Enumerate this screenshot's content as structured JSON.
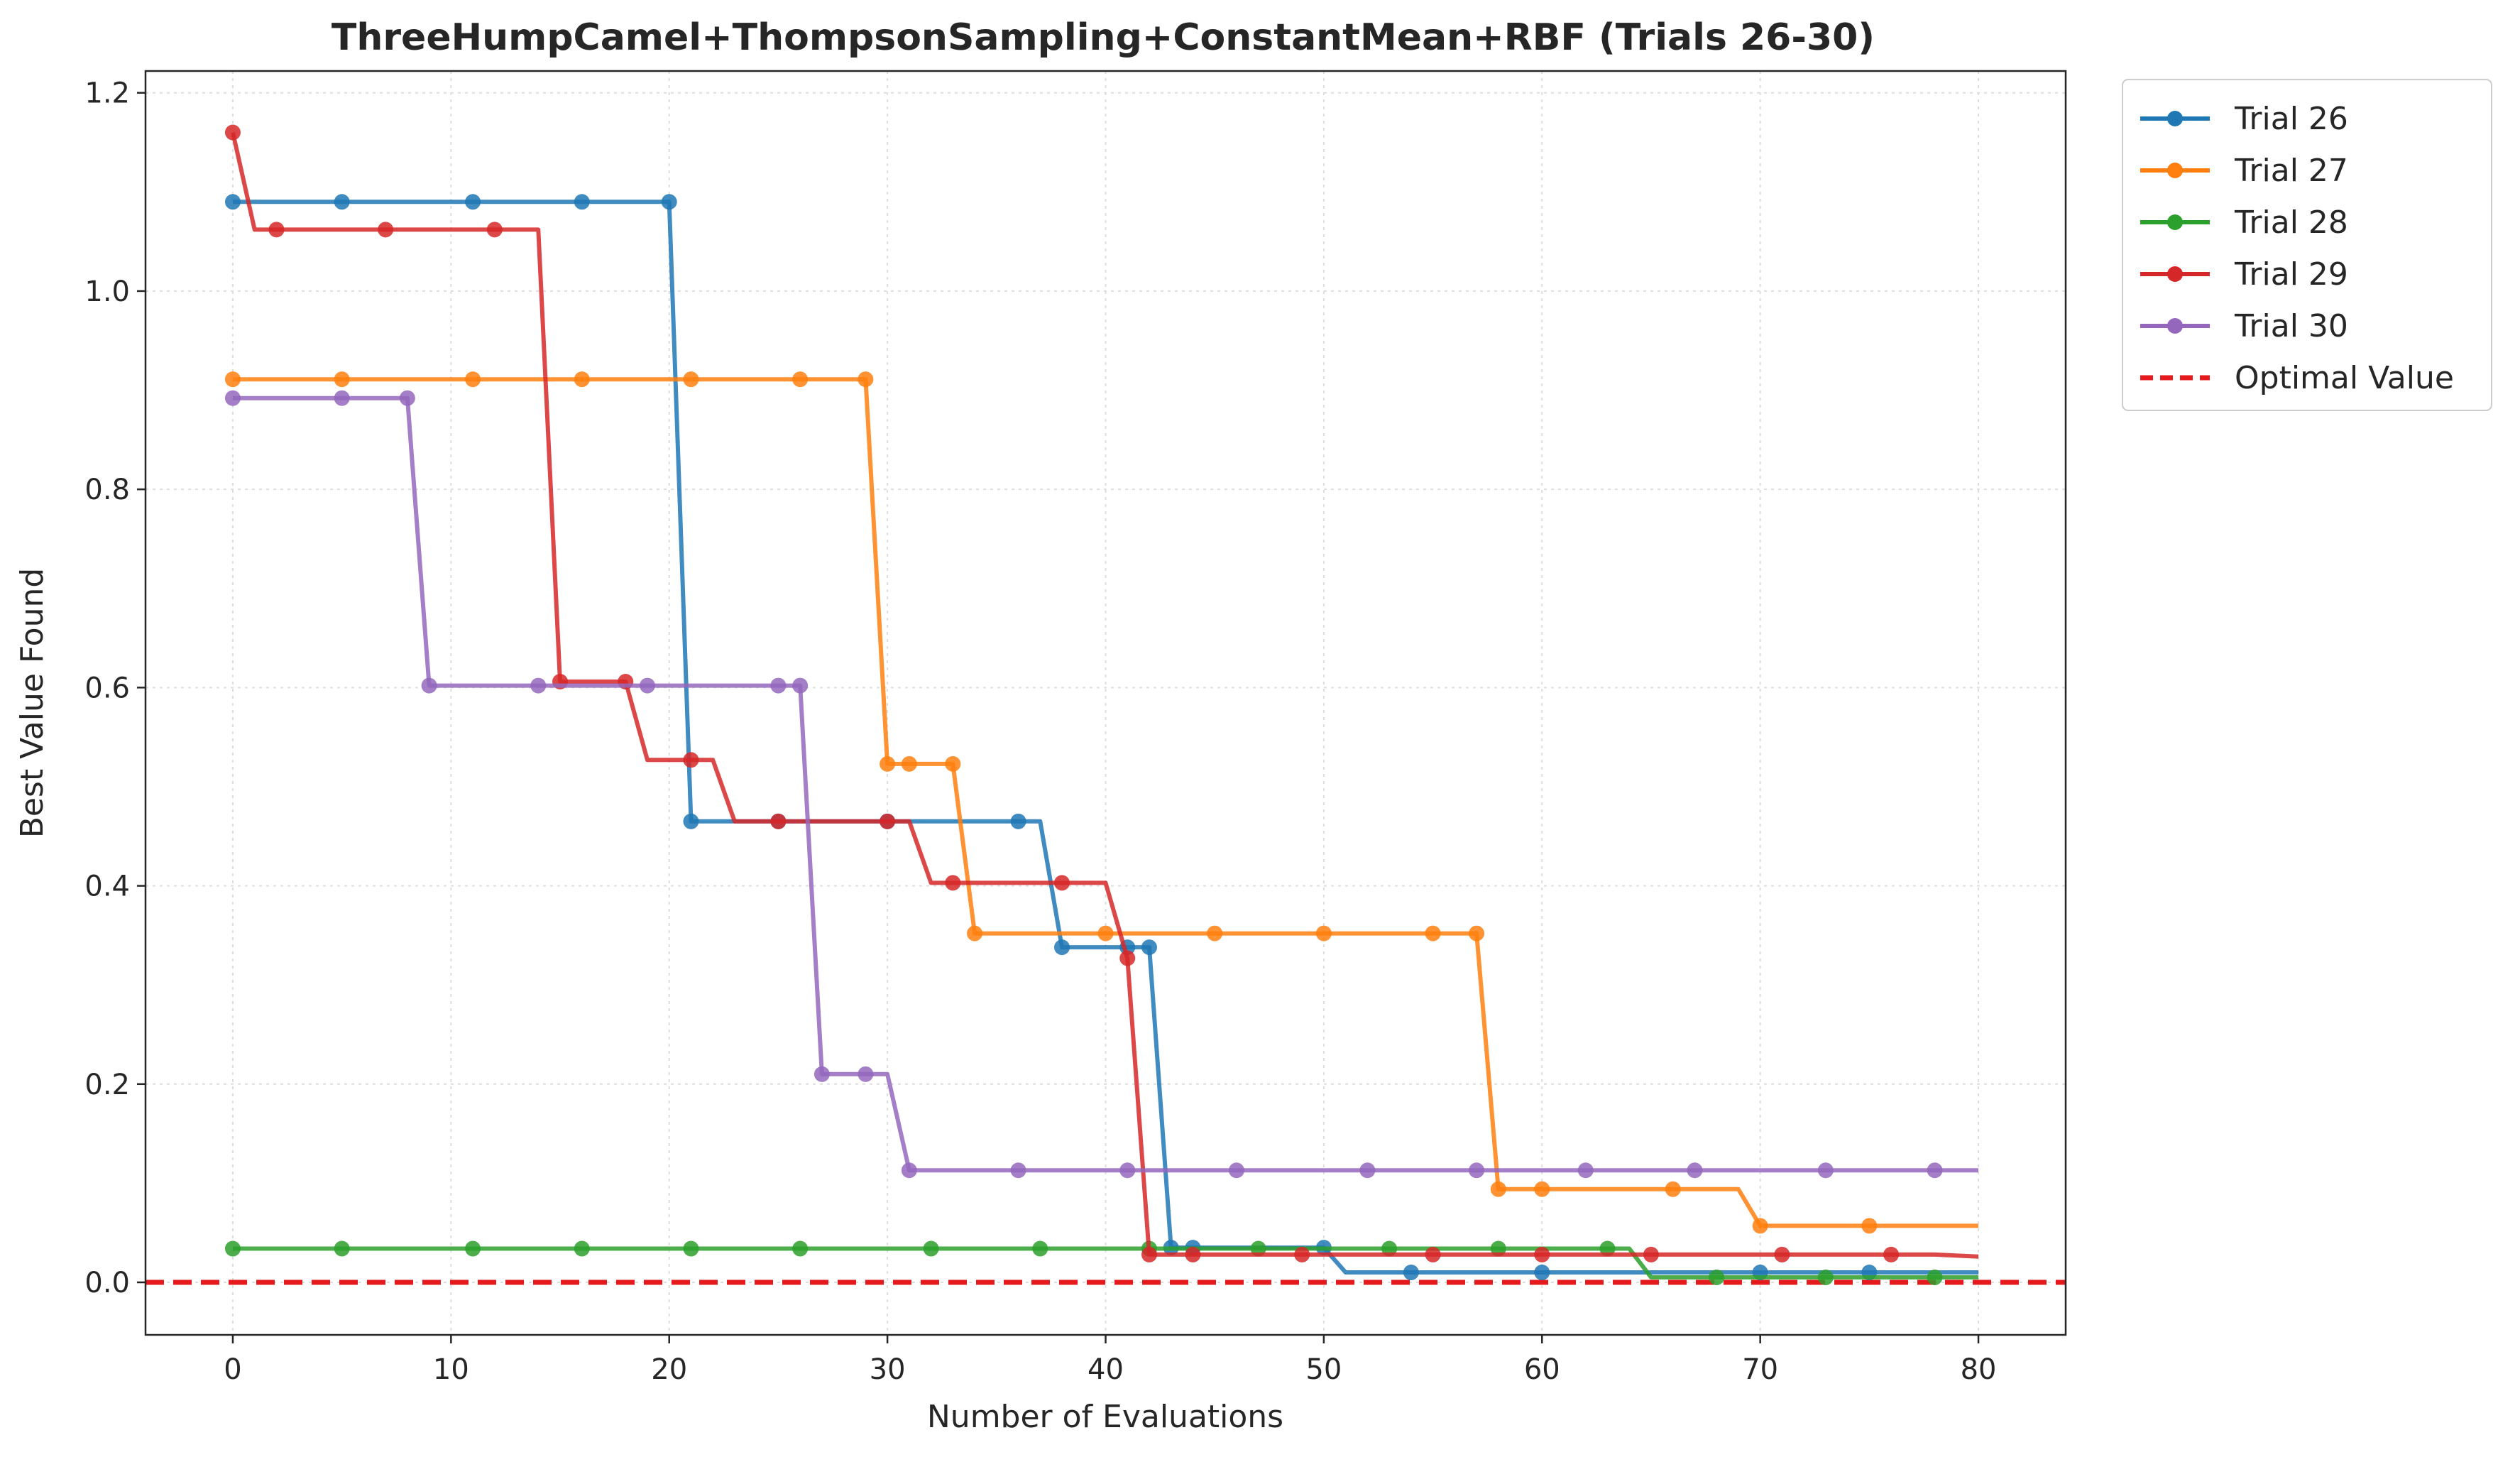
{
  "chart_data": {
    "type": "line",
    "title": "ThreeHumpCamel+ThompsonSampling+ConstantMean+RBF (Trials 26-30)",
    "xlabel": "Number of Evaluations",
    "ylabel": "Best Value Found",
    "xlim": [
      -4,
      84
    ],
    "ylim": [
      -0.053,
      1.222
    ],
    "xticks": [
      0,
      10,
      20,
      30,
      40,
      50,
      60,
      70,
      80
    ],
    "xtick_labels": [
      "0",
      "10",
      "20",
      "30",
      "40",
      "50",
      "60",
      "70",
      "80"
    ],
    "yticks": [
      0.0,
      0.2,
      0.4,
      0.6,
      0.8,
      1.0,
      1.2
    ],
    "ytick_labels": [
      "0.0",
      "0.2",
      "0.4",
      "0.6",
      "0.8",
      "1.0",
      "1.2"
    ],
    "grid": true,
    "legend_position": "outside-top-right",
    "series": [
      {
        "name": "Trial 26",
        "color": "#1f77b4",
        "x": [
          0,
          20,
          21,
          36,
          37,
          38,
          42,
          43,
          50,
          51,
          80
        ],
        "y": [
          1.09,
          1.09,
          0.465,
          0.465,
          0.465,
          0.338,
          0.338,
          0.035,
          0.035,
          0.01,
          0.01
        ],
        "markers_x": [
          0,
          5,
          11,
          16,
          20,
          21,
          25,
          30,
          36,
          38,
          41,
          42,
          43,
          44,
          50,
          54,
          60,
          70,
          75
        ],
        "markers_y": [
          1.09,
          1.09,
          1.09,
          1.09,
          1.09,
          0.465,
          0.465,
          0.465,
          0.465,
          0.338,
          0.338,
          0.338,
          0.035,
          0.035,
          0.035,
          0.01,
          0.01,
          0.01,
          0.01
        ]
      },
      {
        "name": "Trial 27",
        "color": "#ff7f0e",
        "x": [
          0,
          29,
          30,
          33,
          34,
          57,
          58,
          69,
          70,
          80
        ],
        "y": [
          0.911,
          0.911,
          0.523,
          0.523,
          0.352,
          0.352,
          0.094,
          0.094,
          0.057,
          0.057
        ],
        "markers_x": [
          0,
          5,
          11,
          16,
          21,
          26,
          29,
          30,
          31,
          33,
          34,
          40,
          45,
          50,
          55,
          57,
          58,
          60,
          66,
          70,
          75
        ],
        "markers_y": [
          0.911,
          0.911,
          0.911,
          0.911,
          0.911,
          0.911,
          0.911,
          0.523,
          0.523,
          0.523,
          0.352,
          0.352,
          0.352,
          0.352,
          0.352,
          0.352,
          0.094,
          0.094,
          0.094,
          0.057,
          0.057
        ]
      },
      {
        "name": "Trial 28",
        "color": "#2ca02c",
        "x": [
          0,
          64,
          65,
          80
        ],
        "y": [
          0.034,
          0.034,
          0.005,
          0.005
        ],
        "markers_x": [
          0,
          5,
          11,
          16,
          21,
          26,
          32,
          37,
          42,
          47,
          53,
          58,
          63,
          68,
          73,
          78
        ],
        "markers_y": [
          0.034,
          0.034,
          0.034,
          0.034,
          0.034,
          0.034,
          0.034,
          0.034,
          0.034,
          0.034,
          0.034,
          0.034,
          0.034,
          0.005,
          0.005,
          0.005
        ]
      },
      {
        "name": "Trial 29",
        "color": "#d62728",
        "x": [
          0,
          1,
          14,
          15,
          18,
          19,
          22,
          23,
          31,
          32,
          40,
          41,
          42,
          78,
          80
        ],
        "y": [
          1.16,
          1.062,
          1.062,
          0.606,
          0.606,
          0.527,
          0.527,
          0.465,
          0.465,
          0.403,
          0.403,
          0.327,
          0.028,
          0.028,
          0.026
        ],
        "markers_x": [
          0,
          2,
          7,
          12,
          15,
          18,
          21,
          25,
          30,
          33,
          38,
          41,
          42,
          44,
          49,
          55,
          60,
          65,
          71,
          76
        ],
        "markers_y": [
          1.16,
          1.062,
          1.062,
          1.062,
          0.606,
          0.606,
          0.527,
          0.465,
          0.465,
          0.403,
          0.403,
          0.327,
          0.028,
          0.028,
          0.028,
          0.028,
          0.028,
          0.028,
          0.028,
          0.028
        ]
      },
      {
        "name": "Trial 30",
        "color": "#9467bd",
        "x": [
          0,
          8,
          9,
          26,
          27,
          30,
          31,
          80
        ],
        "y": [
          0.892,
          0.892,
          0.602,
          0.602,
          0.21,
          0.21,
          0.113,
          0.113
        ],
        "markers_x": [
          0,
          5,
          8,
          9,
          14,
          19,
          25,
          26,
          27,
          29,
          31,
          36,
          41,
          46,
          52,
          57,
          62,
          67,
          73,
          78
        ],
        "markers_y": [
          0.892,
          0.892,
          0.892,
          0.602,
          0.602,
          0.602,
          0.602,
          0.602,
          0.21,
          0.21,
          0.113,
          0.113,
          0.113,
          0.113,
          0.113,
          0.113,
          0.113,
          0.113,
          0.113,
          0.113
        ]
      }
    ],
    "reference_line": {
      "name": "Optimal Value",
      "y": 0.0,
      "color": "#e41a1c",
      "style": "dashed"
    }
  }
}
